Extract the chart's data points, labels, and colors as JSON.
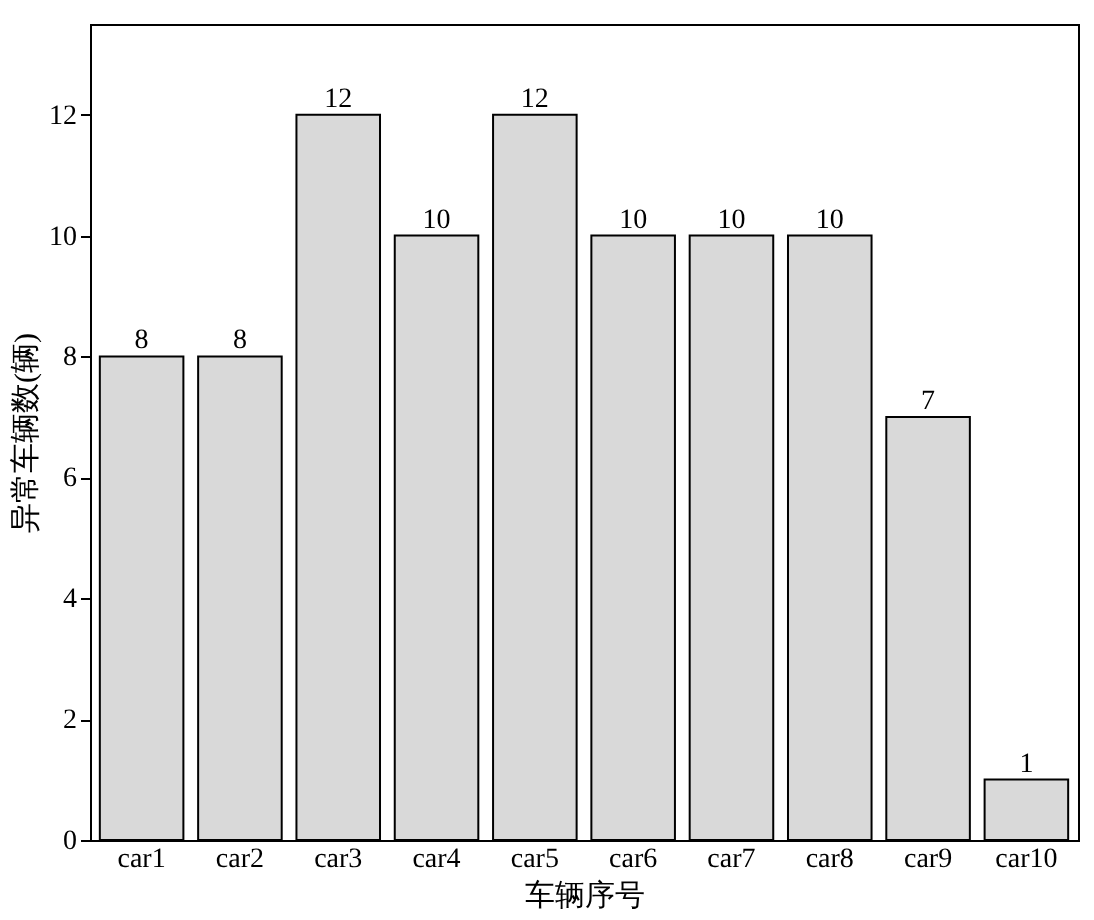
{
  "chart_data": {
    "type": "bar",
    "xlabel": "车辆序号",
    "ylabel": "异常车辆数(辆)",
    "categories": [
      "car1",
      "car2",
      "car3",
      "car4",
      "car5",
      "car6",
      "car7",
      "car8",
      "car9",
      "car10"
    ],
    "values": [
      8,
      8,
      12,
      10,
      12,
      10,
      10,
      10,
      7,
      1
    ],
    "color": "#d9d9d9",
    "ylim": [
      0,
      13.5
    ],
    "yticks": [
      0,
      2,
      4,
      6,
      8,
      10,
      12
    ],
    "data_labels": true,
    "grid": false
  }
}
